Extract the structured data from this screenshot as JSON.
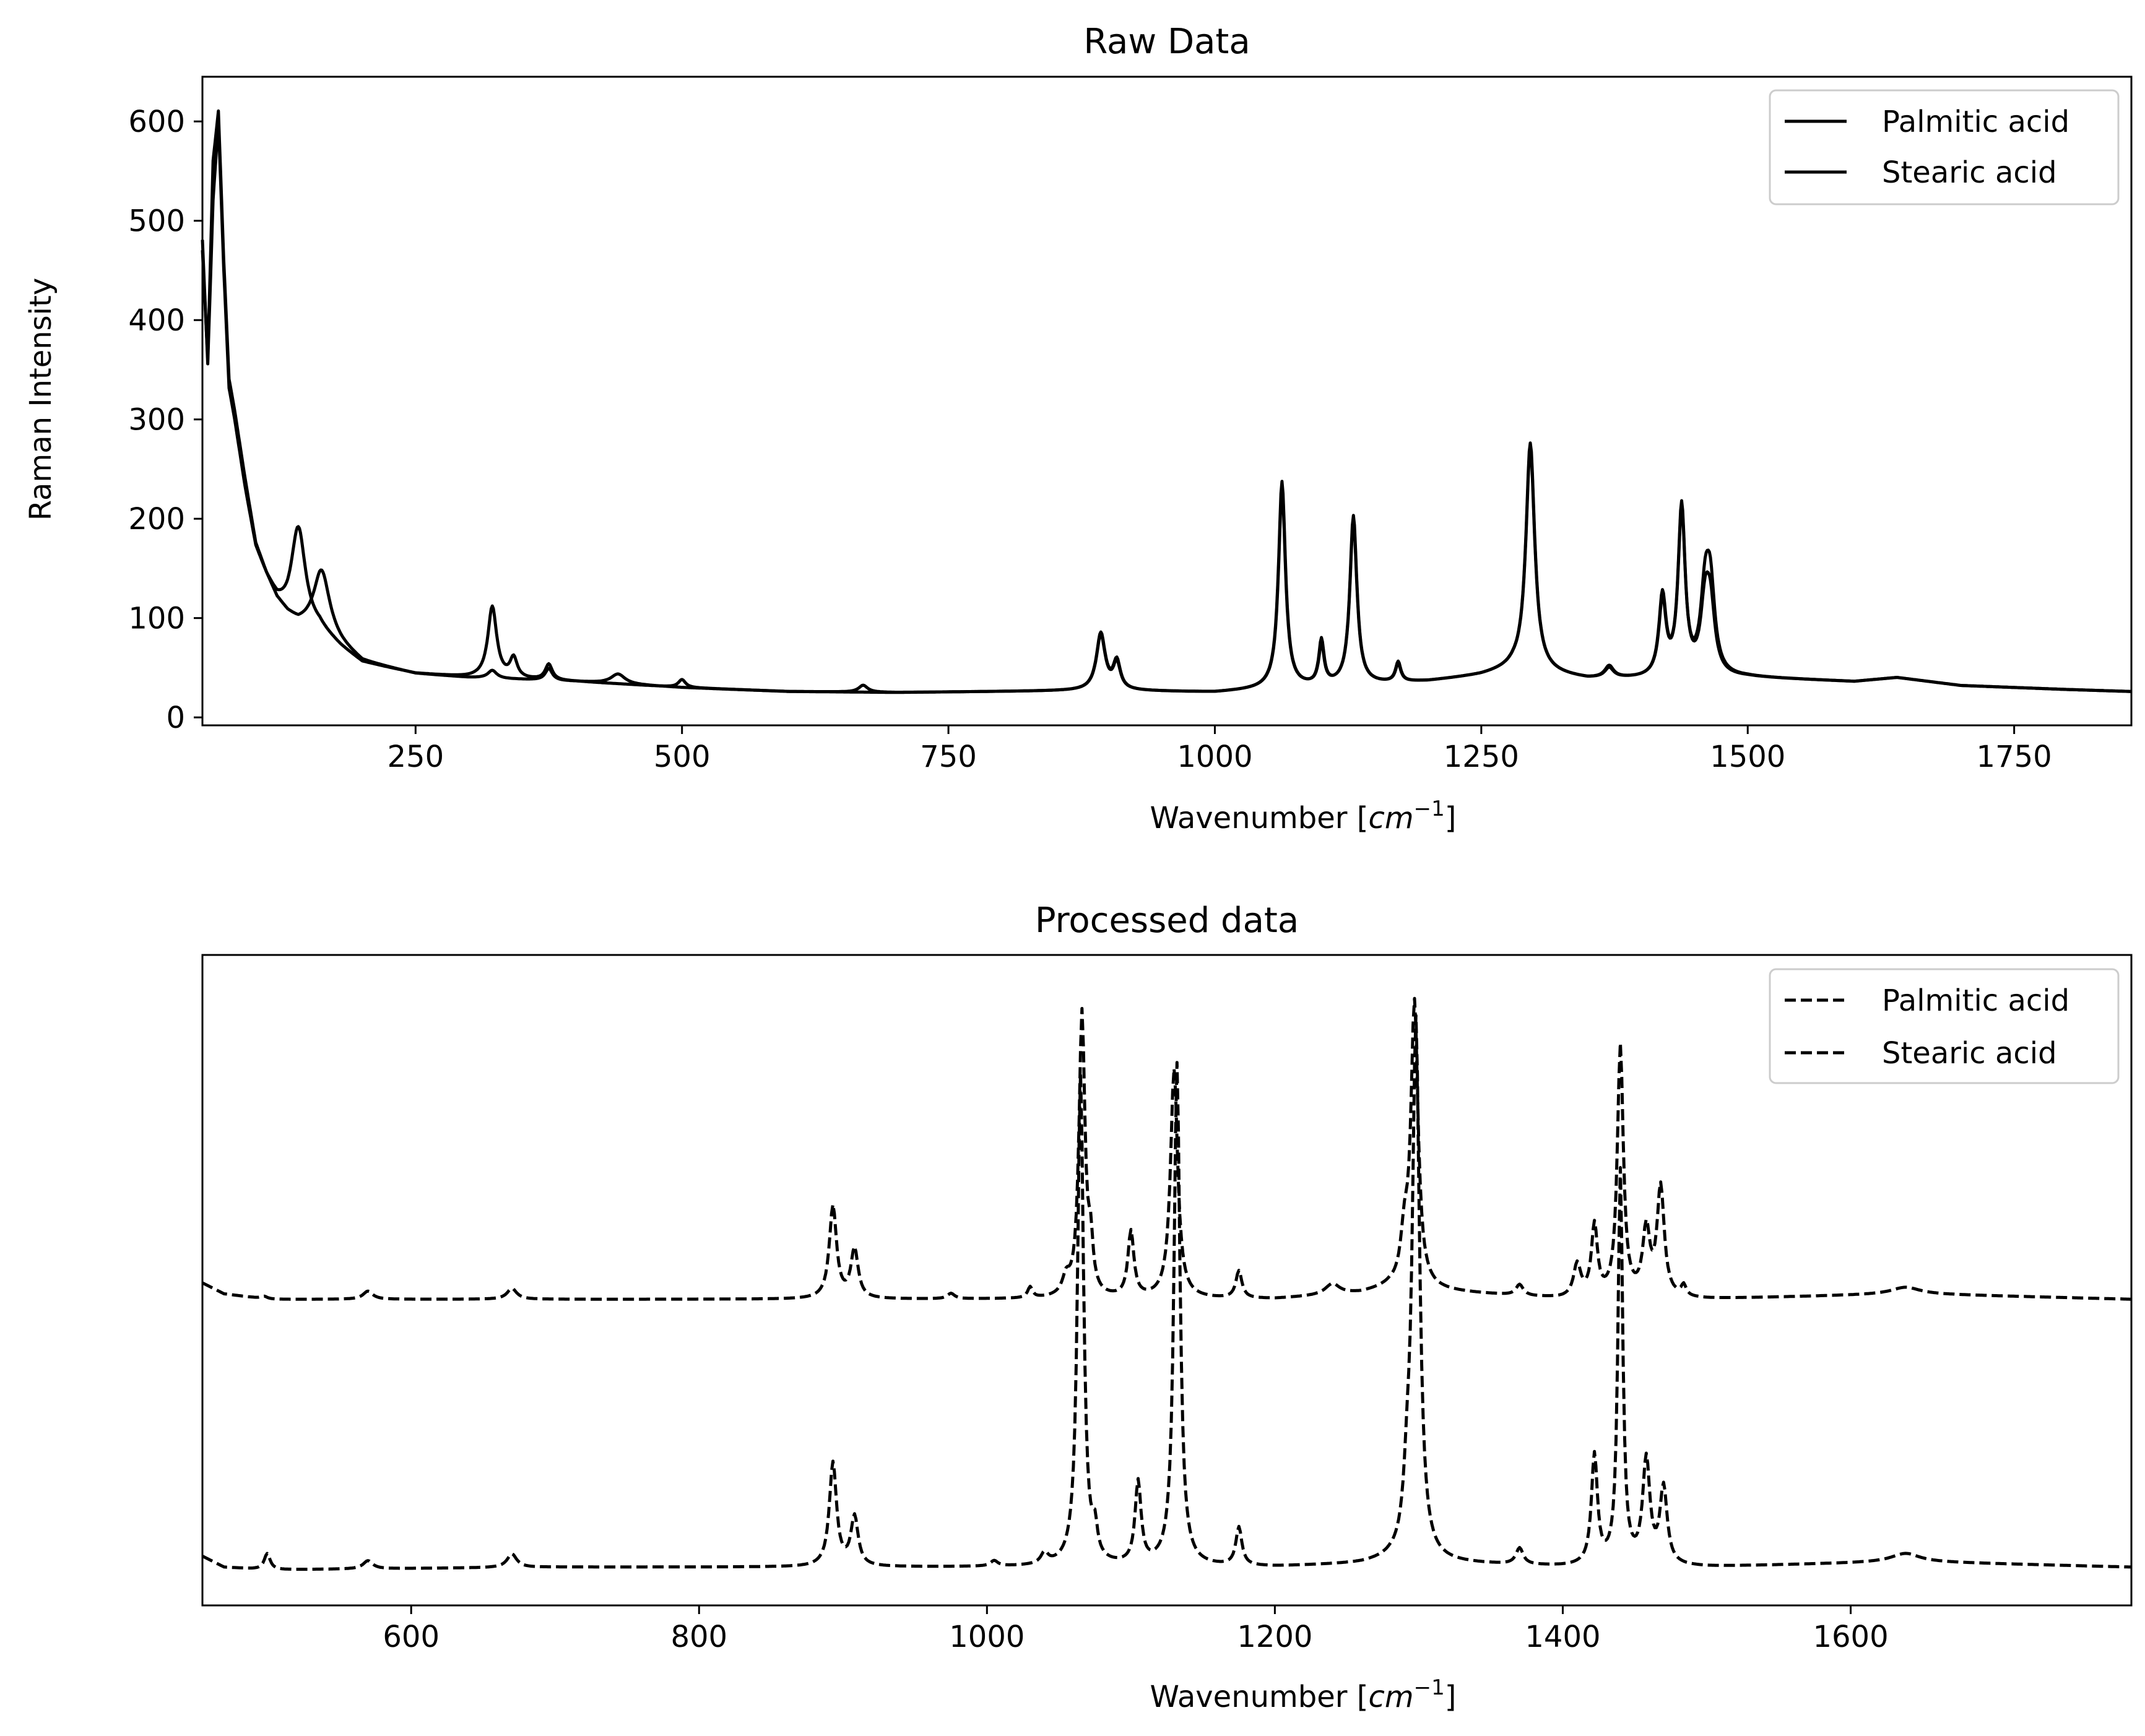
{
  "chart_data": [
    {
      "type": "line",
      "title": "Raw Data",
      "xlabel": "Wavenumber [cm⁻¹]",
      "ylabel": "Raman Intensity",
      "xlim": [
        50,
        1860
      ],
      "ylim": [
        -8,
        645
      ],
      "xticks": [
        250,
        500,
        750,
        1000,
        1250,
        1500,
        1750
      ],
      "yticks": [
        0,
        100,
        200,
        300,
        400,
        500,
        600
      ],
      "grid": false,
      "legend_position": "top-right",
      "line_style": "solid",
      "series": [
        {
          "name": "Palmitic acid",
          "baseline": [
            [
              50,
              480
            ],
            [
              55,
              355
            ],
            [
              60,
              520
            ],
            [
              65,
              600
            ],
            [
              70,
              450
            ],
            [
              75,
              330
            ],
            [
              80,
              300
            ],
            [
              90,
              230
            ],
            [
              100,
              170
            ],
            [
              110,
              140
            ],
            [
              120,
              115
            ],
            [
              130,
              100
            ],
            [
              140,
              92
            ],
            [
              160,
              88
            ],
            [
              180,
              70
            ],
            [
              200,
              55
            ],
            [
              250,
              44
            ],
            [
              300,
              40
            ],
            [
              350,
              38
            ],
            [
              400,
              36
            ],
            [
              500,
              30
            ],
            [
              600,
              26
            ],
            [
              700,
              25
            ],
            [
              800,
              26
            ],
            [
              900,
              27
            ],
            [
              1000,
              25
            ],
            [
              1050,
              28
            ],
            [
              1100,
              30
            ],
            [
              1200,
              36
            ],
            [
              1250,
              42
            ],
            [
              1280,
              48
            ],
            [
              1350,
              38
            ],
            [
              1400,
              38
            ],
            [
              1500,
              40
            ],
            [
              1550,
              38
            ],
            [
              1600,
              36
            ],
            [
              1640,
              40
            ],
            [
              1700,
              32
            ],
            [
              1800,
              28
            ],
            [
              1860,
              26
            ]
          ],
          "peaks": [
            [
              140,
              100,
              8
            ],
            [
              322,
              72,
              5
            ],
            [
              342,
              20,
              4
            ],
            [
              375,
              16,
              4
            ],
            [
              500,
              8,
              4
            ],
            [
              670,
              7,
              5
            ],
            [
              893,
              57,
              5
            ],
            [
              908,
              28,
              4
            ],
            [
              1063,
              208,
              4
            ],
            [
              1100,
              40,
              3
            ],
            [
              1130,
              170,
              4
            ],
            [
              1172,
              20,
              3
            ],
            [
              1296,
              230,
              5
            ],
            [
              1370,
              12,
              5
            ],
            [
              1420,
              80,
              4
            ],
            [
              1438,
              170,
              4
            ],
            [
              1460,
              65,
              5
            ],
            [
              1465,
              62,
              5
            ]
          ]
        },
        {
          "name": "Stearic acid",
          "baseline": [
            [
              50,
              470
            ],
            [
              55,
              360
            ],
            [
              60,
              560
            ],
            [
              65,
              610
            ],
            [
              70,
              460
            ],
            [
              75,
              340
            ],
            [
              80,
              310
            ],
            [
              90,
              240
            ],
            [
              100,
              175
            ],
            [
              110,
              145
            ],
            [
              120,
              120
            ],
            [
              130,
              105
            ],
            [
              140,
              95
            ],
            [
              160,
              90
            ],
            [
              180,
              72
            ],
            [
              200,
              56
            ],
            [
              250,
              44
            ],
            [
              300,
              40
            ],
            [
              350,
              38
            ],
            [
              400,
              36
            ],
            [
              500,
              30
            ],
            [
              600,
              26
            ],
            [
              700,
              25
            ],
            [
              800,
              26
            ],
            [
              900,
              27
            ],
            [
              1000,
              25
            ],
            [
              1050,
              28
            ],
            [
              1100,
              30
            ],
            [
              1200,
              36
            ],
            [
              1250,
              42
            ],
            [
              1280,
              48
            ],
            [
              1350,
              38
            ],
            [
              1400,
              38
            ],
            [
              1500,
              40
            ],
            [
              1550,
              38
            ],
            [
              1600,
              36
            ],
            [
              1640,
              40
            ],
            [
              1700,
              32
            ],
            [
              1800,
              28
            ],
            [
              1860,
              26
            ]
          ],
          "peaks": [
            [
              162,
              60,
              9
            ],
            [
              322,
              8,
              5
            ],
            [
              375,
              12,
              4
            ],
            [
              440,
              10,
              8
            ],
            [
              893,
              55,
              5
            ],
            [
              908,
              26,
              4
            ],
            [
              1063,
              200,
              4
            ],
            [
              1100,
              45,
              3
            ],
            [
              1130,
              165,
              4
            ],
            [
              1172,
              18,
              3
            ],
            [
              1296,
              225,
              5
            ],
            [
              1370,
              10,
              5
            ],
            [
              1420,
              75,
              4
            ],
            [
              1438,
              165,
              4
            ],
            [
              1460,
              75,
              5
            ],
            [
              1465,
              80,
              5
            ]
          ]
        }
      ]
    },
    {
      "type": "line",
      "title": "Processed data",
      "xlabel": "Wavenumber [cm⁻¹]",
      "ylabel": "",
      "xlim": [
        455,
        1795
      ],
      "ylim": [
        -0.07,
        1.12
      ],
      "xticks": [
        600,
        800,
        1000,
        1200,
        1400,
        1600
      ],
      "yticks": [],
      "grid": false,
      "legend_position": "top-right",
      "line_style": "dashed",
      "series": [
        {
          "name": "Palmitic acid",
          "baseline": [
            [
              455,
              0.52
            ],
            [
              470,
              0.5
            ],
            [
              500,
              0.49
            ],
            [
              700,
              0.49
            ],
            [
              880,
              0.49
            ],
            [
              1000,
              0.49
            ],
            [
              1200,
              0.49
            ],
            [
              1260,
              0.5
            ],
            [
              1280,
              0.51
            ],
            [
              1400,
              0.49
            ],
            [
              1500,
              0.49
            ],
            [
              1640,
              0.5
            ],
            [
              1795,
              0.49
            ]
          ],
          "peaks": [
            [
              498,
              0.005,
              3
            ],
            [
              570,
              0.015,
              4
            ],
            [
              670,
              0.02,
              4
            ],
            [
              893,
              0.17,
              3
            ],
            [
              908,
              0.09,
              3
            ],
            [
              975,
              0.01,
              3
            ],
            [
              1030,
              0.02,
              2
            ],
            [
              1055,
              0.03,
              3
            ],
            [
              1066,
              0.52,
              2.5
            ],
            [
              1072,
              0.08,
              2
            ],
            [
              1100,
              0.12,
              2.5
            ],
            [
              1130,
              0.42,
              3
            ],
            [
              1175,
              0.05,
              2.5
            ],
            [
              1240,
              0.02,
              6
            ],
            [
              1290,
              0.08,
              3
            ],
            [
              1297,
              0.52,
              3
            ],
            [
              1370,
              0.02,
              3
            ],
            [
              1410,
              0.06,
              3
            ],
            [
              1422,
              0.13,
              2.5
            ],
            [
              1440,
              0.46,
              2.5
            ],
            [
              1458,
              0.12,
              3
            ],
            [
              1468,
              0.2,
              3
            ],
            [
              1484,
              0.02,
              2
            ],
            [
              1638,
              0.012,
              12
            ]
          ]
        },
        {
          "name": "Stearic acid",
          "baseline": [
            [
              455,
              0.02
            ],
            [
              470,
              0.0
            ],
            [
              500,
              -0.005
            ],
            [
              700,
              0.0
            ],
            [
              880,
              0.0
            ],
            [
              1000,
              0.0
            ],
            [
              1200,
              0.0
            ],
            [
              1260,
              0.005
            ],
            [
              1280,
              0.01
            ],
            [
              1400,
              0.0
            ],
            [
              1500,
              0.0
            ],
            [
              1640,
              0.01
            ],
            [
              1795,
              0.0
            ]
          ],
          "peaks": [
            [
              500,
              0.03,
              2.5
            ],
            [
              570,
              0.015,
              4
            ],
            [
              670,
              0.025,
              4
            ],
            [
              893,
              0.19,
              3
            ],
            [
              908,
              0.09,
              3
            ],
            [
              1005,
              0.01,
              3
            ],
            [
              1040,
              0.02,
              3
            ],
            [
              1065,
              0.9,
              2.5
            ],
            [
              1075,
              0.05,
              2
            ],
            [
              1105,
              0.15,
              2.5
            ],
            [
              1132,
              0.92,
              2.5
            ],
            [
              1175,
              0.07,
              2.5
            ],
            [
              1292,
              0.1,
              3
            ],
            [
              1298,
              0.98,
              3
            ],
            [
              1370,
              0.03,
              3
            ],
            [
              1422,
              0.2,
              2.5
            ],
            [
              1440,
              0.72,
              2
            ],
            [
              1458,
              0.19,
              3
            ],
            [
              1470,
              0.14,
              3
            ],
            [
              1638,
              0.015,
              12
            ]
          ]
        }
      ]
    }
  ]
}
